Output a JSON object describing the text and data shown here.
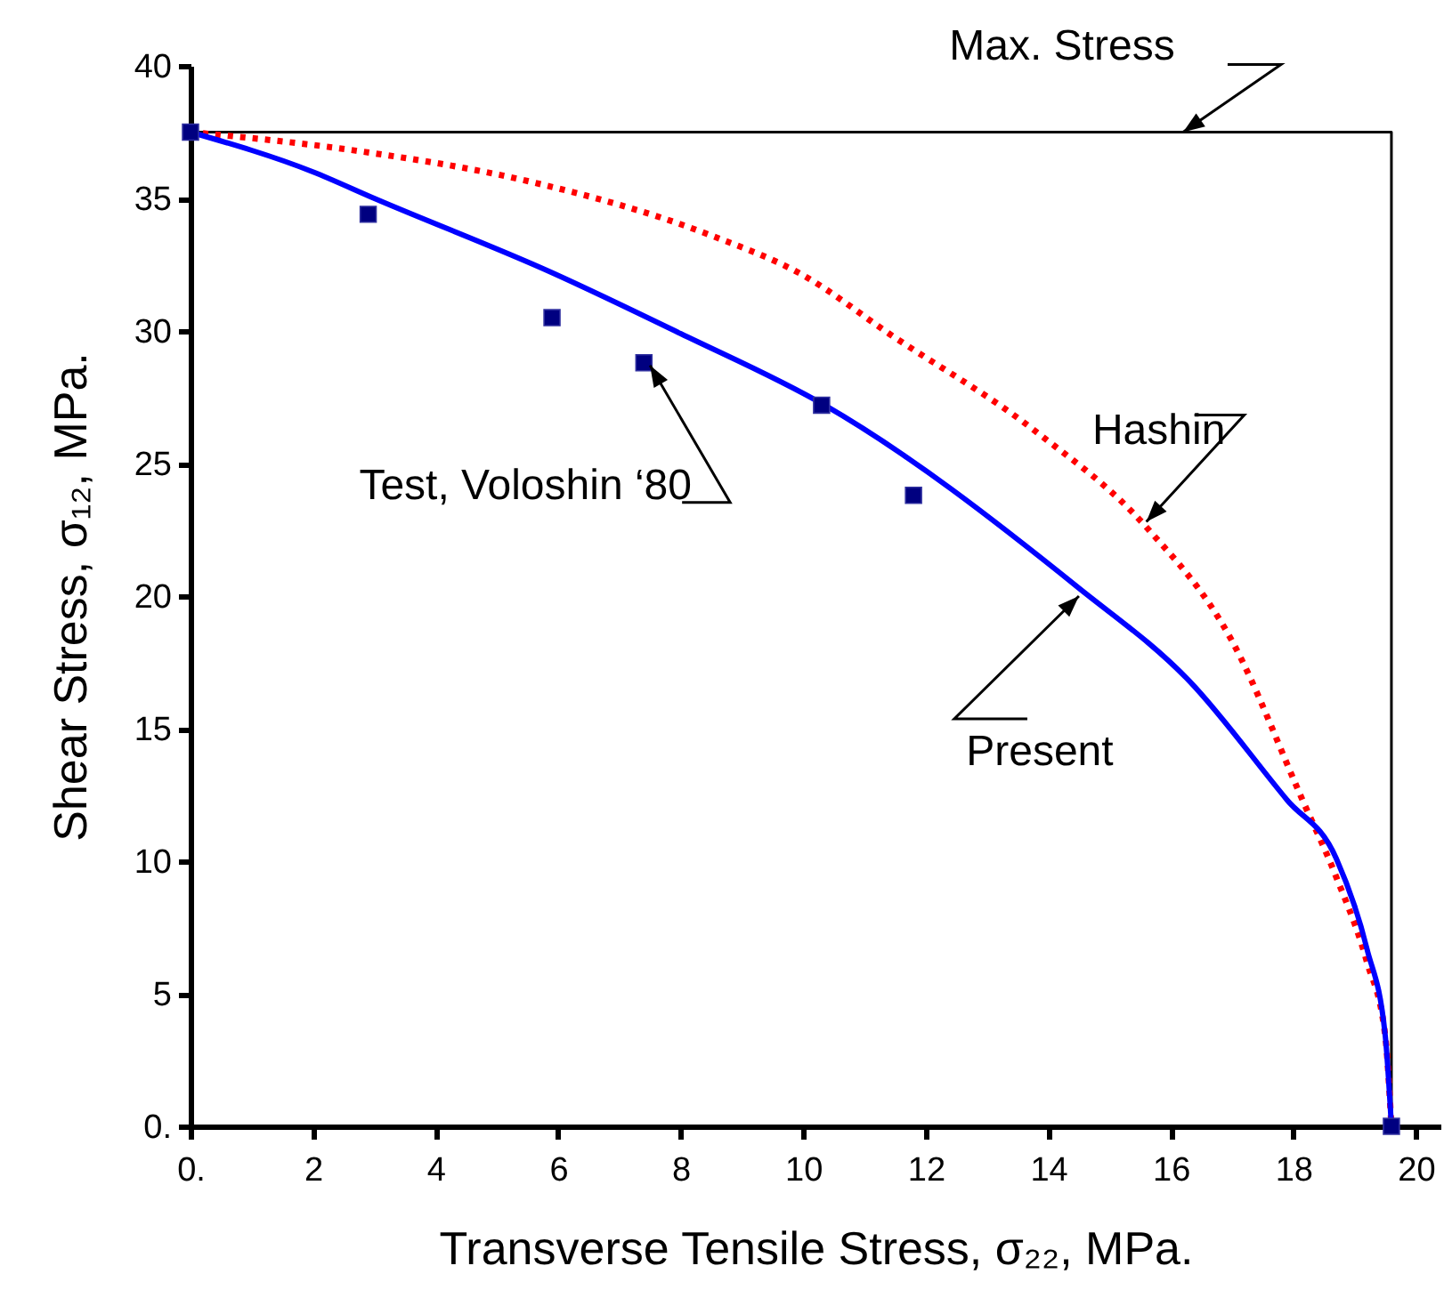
{
  "chart_data": {
    "type": "line",
    "xlabel": "Transverse Tensile Stress, σ₂₂,  MPa.",
    "ylabel": "Shear Stress, σ₁₂,  MPa.",
    "xlim": [
      0,
      20.4
    ],
    "ylim": [
      0,
      40
    ],
    "xticks": [
      {
        "value": 0,
        "label": "0."
      },
      2,
      4,
      6,
      8,
      10,
      12,
      14,
      16,
      18,
      20
    ],
    "yticks": [
      {
        "value": 0,
        "label": "0."
      },
      5,
      10,
      15,
      20,
      25,
      30,
      35,
      40
    ],
    "grid": false,
    "series": [
      {
        "color": "#000000",
        "line_style": "solid",
        "x": [
          0,
          19.6,
          19.6
        ],
        "values": [
          37.5,
          37.5,
          0
        ]
      },
      {
        "color": "#ff0000",
        "line_style": "dotted",
        "x": [
          0,
          2.7,
          5.6,
          8.5,
          10.0,
          11.4,
          13.8,
          15.6,
          17.0,
          18.15,
          18.7,
          19.2,
          19.5,
          19.6
        ],
        "values": [
          37.5,
          36.8,
          35.6,
          33.6,
          32.1,
          29.9,
          26.2,
          22.6,
          18.3,
          12.3,
          9.4,
          6.2,
          3.4,
          0
        ]
      },
      {
        "color": "#0000ff",
        "line_style": "solid",
        "x": [
          0,
          2,
          3.0,
          5.9,
          8,
          10.35,
          14.5,
          16.3,
          17.9,
          18.7,
          19.2,
          19.5,
          19.6
        ],
        "values": [
          37.5,
          36.0,
          35.0,
          32.2,
          29.9,
          27.2,
          20.3,
          16.8,
          12.3,
          10.1,
          6.7,
          3.4,
          0
        ]
      },
      {
        "type": "scatter",
        "color": "#000080",
        "marker": "square",
        "x": [
          0,
          2.9,
          5.9,
          7.4,
          10.3,
          11.8,
          19.6
        ],
        "values": [
          37.5,
          34.4,
          30.5,
          28.8,
          27.2,
          23.8,
          0
        ]
      }
    ],
    "annotations": [
      {
        "text": "Max. Stress",
        "x": 16.2,
        "y": 37.5
      },
      {
        "text": "Hashin",
        "x": 15.6,
        "y": 22.8
      },
      {
        "text": "Present",
        "x": 14.5,
        "y": 20.0
      },
      {
        "text": "Test, Voloshin ‘80",
        "x": 7.5,
        "y": 28.7
      }
    ]
  }
}
